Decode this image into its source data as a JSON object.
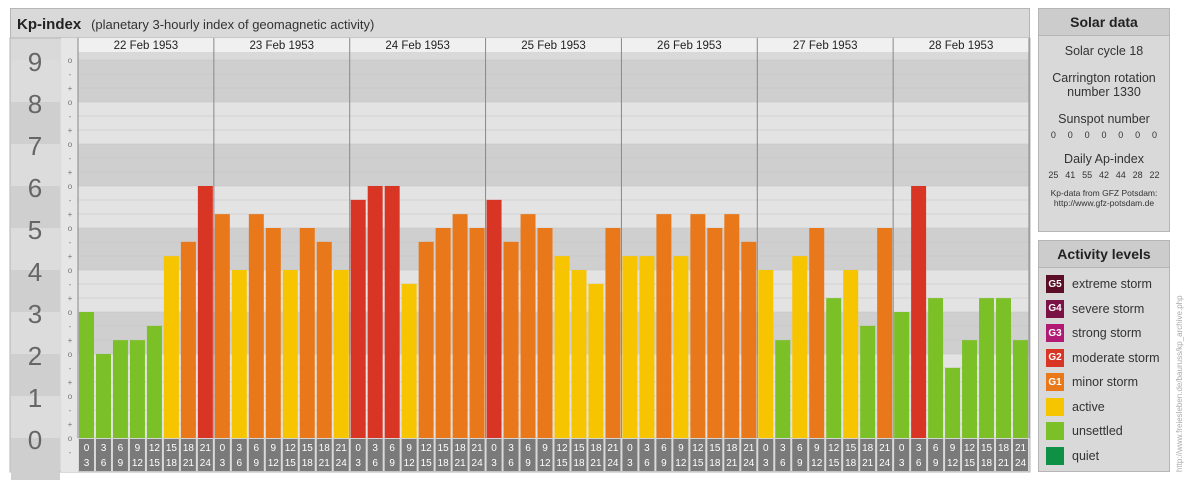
{
  "header": {
    "title": "Kp-index",
    "subtitle": "(planetary 3-hourly index of geomagnetic activity)"
  },
  "chart_data": {
    "type": "bar",
    "title": "Kp-index",
    "subtitle": "(planetary 3-hourly index of geomagnetic activity)",
    "ylim": [
      0,
      9
    ],
    "y_ticks": [
      "0",
      "1",
      "2",
      "3",
      "4",
      "5",
      "6",
      "7",
      "8",
      "9"
    ],
    "y_minor_ticks": [
      "+",
      "o",
      "-"
    ],
    "days": [
      "22 Feb 1953",
      "23 Feb 1953",
      "24 Feb 1953",
      "25 Feb 1953",
      "26 Feb 1953",
      "27 Feb 1953",
      "28 Feb 1953"
    ],
    "interval_labels": [
      [
        "0",
        "3"
      ],
      [
        "3",
        "6"
      ],
      [
        "6",
        "9"
      ],
      [
        "9",
        "12"
      ],
      [
        "12",
        "15"
      ],
      [
        "15",
        "18"
      ],
      [
        "18",
        "21"
      ],
      [
        "21",
        "24"
      ]
    ],
    "values": [
      [
        3.0,
        2.0,
        2.33,
        2.33,
        2.67,
        4.33,
        4.67,
        6.0
      ],
      [
        5.33,
        4.0,
        5.33,
        5.0,
        4.0,
        5.0,
        4.67,
        4.0
      ],
      [
        5.67,
        6.0,
        6.0,
        3.67,
        4.67,
        5.0,
        5.33,
        5.0
      ],
      [
        5.67,
        4.67,
        5.33,
        5.0,
        4.33,
        4.0,
        3.67,
        5.0
      ],
      [
        4.33,
        4.33,
        5.33,
        4.33,
        5.33,
        5.0,
        5.33,
        4.67
      ],
      [
        4.0,
        2.33,
        4.33,
        5.0,
        3.33,
        4.0,
        2.67,
        5.0
      ],
      [
        3.0,
        6.0,
        3.33,
        1.67,
        2.33,
        3.33,
        3.33,
        2.33
      ]
    ],
    "colors": {
      "unsettled": "#7bc026",
      "active": "#f7c500",
      "minor": "#e8781a",
      "moderate": "#d93525"
    },
    "grid": true
  },
  "solar": {
    "title": "Solar data",
    "cycle": "Solar cycle 18",
    "carrington_1": "Carrington rotation",
    "carrington_2": "number 1330",
    "sunspot_label": "Sunspot number",
    "sunspots": [
      "0",
      "0",
      "0",
      "0",
      "0",
      "0",
      "0"
    ],
    "ap_label": "Daily Ap-index",
    "ap": [
      "25",
      "41",
      "55",
      "42",
      "44",
      "28",
      "22"
    ],
    "credit_1": "Kp-data from GFZ Potsdam:",
    "credit_2": "http://www.gfz-potsdam.de"
  },
  "activity": {
    "title": "Activity levels",
    "levels": [
      {
        "code": "G5",
        "label": "extreme storm",
        "color": "#5b0f26"
      },
      {
        "code": "G4",
        "label": "severe storm",
        "color": "#7a1245"
      },
      {
        "code": "G3",
        "label": "strong storm",
        "color": "#b01a72"
      },
      {
        "code": "G2",
        "label": "moderate storm",
        "color": "#d93525"
      },
      {
        "code": "G1",
        "label": "minor storm",
        "color": "#e8781a"
      },
      {
        "code": "",
        "label": "active",
        "color": "#f7c500"
      },
      {
        "code": "",
        "label": "unsettled",
        "color": "#7bc026"
      },
      {
        "code": "",
        "label": "quiet",
        "color": "#0f9145"
      }
    ]
  },
  "watermark": "http://www.freiesleben.de/bauruss/kp_archive.php"
}
